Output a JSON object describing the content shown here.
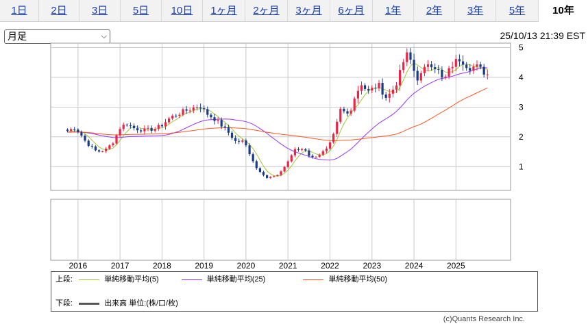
{
  "tabs": [
    {
      "label": "1日"
    },
    {
      "label": "2日"
    },
    {
      "label": "3日"
    },
    {
      "label": "5日"
    },
    {
      "label": "10日"
    },
    {
      "label": "1ヶ月"
    },
    {
      "label": "2ヶ月"
    },
    {
      "label": "3ヶ月"
    },
    {
      "label": "6ヶ月"
    },
    {
      "label": "1年"
    },
    {
      "label": "2年"
    },
    {
      "label": "3年"
    },
    {
      "label": "5年"
    },
    {
      "label": "10年"
    }
  ],
  "active_tab": "10年",
  "period_select": {
    "value": "月足"
  },
  "timestamp": "25/10/13 21:39 EST",
  "legend": {
    "upper_label": "上段:",
    "lower_label": "下段:",
    "items": [
      {
        "name": "単純移動平均(5)",
        "color": "#99cc33"
      },
      {
        "name": "単純移動平均(25)",
        "color": "#9933ff"
      },
      {
        "name": "単純移動平均(50)",
        "color": "#ff5522"
      }
    ],
    "volume": {
      "name": "出来高 単位:(株/口/枚)",
      "color": "#555555"
    }
  },
  "copyright": "(c)Quants Research Inc.",
  "colors": {
    "up": "#ee2244",
    "down": "#1a3a8c",
    "grid": "#c8c8c8"
  },
  "chart_data": {
    "type": "candlestick",
    "x_range": [
      2015.35,
      2026.3
    ],
    "y_range": [
      0.2,
      5.15
    ],
    "x_ticks": [
      "2016",
      "2017",
      "2018",
      "2019",
      "2020",
      "2021",
      "2022",
      "2023",
      "2024",
      "2025"
    ],
    "y_ticks": [
      "1",
      "2",
      "3",
      "4",
      "5"
    ],
    "grid": true,
    "close_anchors": [
      [
        2015.75,
        2.2
      ],
      [
        2015.92,
        2.3
      ],
      [
        2016.05,
        2.12
      ],
      [
        2016.2,
        1.8
      ],
      [
        2016.45,
        1.5
      ],
      [
        2016.65,
        1.55
      ],
      [
        2016.85,
        1.85
      ],
      [
        2017.0,
        2.3
      ],
      [
        2017.15,
        2.45
      ],
      [
        2017.35,
        2.28
      ],
      [
        2017.6,
        2.22
      ],
      [
        2017.85,
        2.28
      ],
      [
        2018.0,
        2.4
      ],
      [
        2018.2,
        2.65
      ],
      [
        2018.45,
        2.82
      ],
      [
        2018.7,
        2.95
      ],
      [
        2018.9,
        3.05
      ],
      [
        2019.05,
        2.8
      ],
      [
        2019.3,
        2.55
      ],
      [
        2019.55,
        2.2
      ],
      [
        2019.75,
        1.85
      ],
      [
        2019.95,
        1.85
      ],
      [
        2020.1,
        1.4
      ],
      [
        2020.25,
        0.95
      ],
      [
        2020.5,
        0.62
      ],
      [
        2020.75,
        0.7
      ],
      [
        2020.95,
        1.05
      ],
      [
        2021.15,
        1.55
      ],
      [
        2021.4,
        1.6
      ],
      [
        2021.55,
        1.28
      ],
      [
        2021.75,
        1.42
      ],
      [
        2021.95,
        1.6
      ],
      [
        2022.1,
        2.1
      ],
      [
        2022.25,
        2.9
      ],
      [
        2022.45,
        2.75
      ],
      [
        2022.6,
        3.4
      ],
      [
        2022.75,
        3.8
      ],
      [
        2022.9,
        3.5
      ],
      [
        2023.15,
        3.75
      ],
      [
        2023.35,
        3.3
      ],
      [
        2023.55,
        3.7
      ],
      [
        2023.7,
        4.25
      ],
      [
        2023.8,
        4.8
      ],
      [
        2023.95,
        4.5
      ],
      [
        2024.05,
        3.95
      ],
      [
        2024.2,
        4.1
      ],
      [
        2024.35,
        4.55
      ],
      [
        2024.55,
        4.3
      ],
      [
        2024.7,
        3.85
      ],
      [
        2024.9,
        4.4
      ],
      [
        2025.1,
        4.65
      ],
      [
        2025.3,
        4.35
      ],
      [
        2025.5,
        4.35
      ],
      [
        2025.65,
        4.2
      ],
      [
        2025.8,
        4.05
      ]
    ]
  }
}
